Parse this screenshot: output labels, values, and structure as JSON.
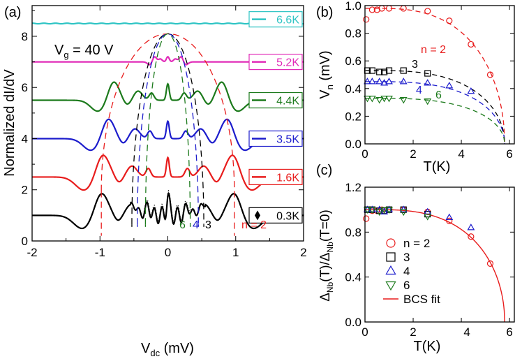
{
  "chart_data": [
    {
      "panel": "(a)",
      "type": "line",
      "xlabel_main": "V",
      "xlabel_sub": "dc",
      "xlabel_unit": " (mV)",
      "ylabel": "Normalized dI/dV",
      "annotation_main": "V",
      "annotation_sub": "g",
      "annotation_value": " = 40 V",
      "xlim": [
        -2,
        2
      ],
      "ylim": [
        0,
        9.2
      ],
      "xticks": [
        "-2",
        "-1",
        "0",
        "1",
        "2"
      ],
      "yticks": [
        "0",
        "2",
        "4",
        "6",
        "8"
      ],
      "series": [
        {
          "name": "6.6K",
          "color": "#2ec4c4",
          "baseline": 8.5,
          "gap": 0.0,
          "amp": 0.0
        },
        {
          "name": "5.2K",
          "color": "#e12bb8",
          "baseline": 7.0,
          "gap": 0.2,
          "amp": 0.25
        },
        {
          "name": "4.4K",
          "color": "#1c7a1c",
          "baseline": 5.5,
          "gap": 0.8,
          "amp": 0.8
        },
        {
          "name": "3.5K",
          "color": "#1c1ccc",
          "baseline": 4.0,
          "gap": 0.88,
          "amp": 0.85
        },
        {
          "name": "1.6K",
          "color": "#e81c1c",
          "baseline": 2.5,
          "gap": 0.96,
          "amp": 0.95
        },
        {
          "name": "0.3K",
          "color": "#000000",
          "baseline": 1.0,
          "gap": 0.98,
          "amp": 0.95
        }
      ],
      "guide_labels": {
        "n2": "n = 2",
        "n3": "3",
        "n4": "4",
        "n6": "6"
      },
      "guides": [
        {
          "n": "2",
          "color": "#e81c1c",
          "x_base": 0.98,
          "y_base": 1.95
        },
        {
          "n": "3",
          "color": "#000000",
          "x_base": 0.53,
          "y_base": 0.65
        },
        {
          "n": "4",
          "color": "#1c1ccc",
          "x_base": 0.45,
          "y_base": 0.65
        },
        {
          "n": "6",
          "color": "#1c7a1c",
          "x_base": 0.33,
          "y_base": 0.65
        }
      ],
      "guide_top_y": 8.1
    },
    {
      "panel": "(b)",
      "type": "scatter",
      "xlabel": "T(K)",
      "ylabel_main": "V",
      "ylabel_sub": "n",
      "ylabel_unit": " (mV)",
      "xlim": [
        0,
        6.2
      ],
      "ylim": [
        0,
        1.0
      ],
      "xticks": [
        "0",
        "2",
        "4",
        "6"
      ],
      "yticks": [
        "0.0",
        "0.2",
        "0.4",
        "0.6",
        "0.8",
        "1.0"
      ],
      "tc": 5.8,
      "series": [
        {
          "name": "n = 2",
          "marker": "circle",
          "color": "#e81c1c",
          "delta0": 0.98,
          "T": [
            0.05,
            0.3,
            0.5,
            0.7,
            1.0,
            1.6,
            2.6,
            3.5,
            4.4,
            5.2
          ],
          "V": [
            0.9,
            0.97,
            0.97,
            0.98,
            0.98,
            0.98,
            0.96,
            0.89,
            0.72,
            0.5
          ]
        },
        {
          "name": "3",
          "marker": "square",
          "color": "#000000",
          "delta0": 0.53,
          "T": [
            0.1,
            0.3,
            0.6,
            0.8,
            1.0,
            1.6,
            2.6
          ],
          "V": [
            0.53,
            0.53,
            0.52,
            0.52,
            0.53,
            0.53,
            0.51
          ]
        },
        {
          "name": "4",
          "marker": "triangle-up",
          "color": "#1c1ccc",
          "delta0": 0.45,
          "T": [
            0.1,
            0.3,
            0.6,
            0.8,
            1.0,
            1.6,
            2.6,
            3.5,
            4.4
          ],
          "V": [
            0.45,
            0.45,
            0.45,
            0.44,
            0.45,
            0.45,
            0.44,
            0.42,
            0.38
          ]
        },
        {
          "name": "6",
          "marker": "triangle-down",
          "color": "#1c7a1c",
          "delta0": 0.33,
          "T": [
            0.1,
            0.3,
            0.6,
            0.8,
            1.0,
            1.6,
            2.6
          ],
          "V": [
            0.33,
            0.33,
            0.32,
            0.33,
            0.33,
            0.32,
            0.31
          ]
        }
      ]
    },
    {
      "panel": "(c)",
      "type": "scatter",
      "xlabel": "T(K)",
      "ylabel": "ΔNb(T)/ΔNb(T=0)",
      "ylabel_parts": [
        "Δ",
        "Nb",
        "(T)/Δ",
        "Nb",
        "(T=0)"
      ],
      "xlim": [
        0,
        6.2
      ],
      "ylim": [
        0,
        1.2
      ],
      "xticks": [
        "0",
        "2",
        "4",
        "6"
      ],
      "yticks": [
        "0.0",
        "0.4",
        "0.8",
        "1.2"
      ],
      "tc": 5.8,
      "fit_label": "BCS fit",
      "fit_color": "#e81c1c",
      "series": [
        {
          "name": "n = 2",
          "marker": "circle",
          "color": "#e81c1c",
          "T": [
            0.05,
            0.3,
            0.5,
            0.7,
            1.0,
            1.6,
            2.6,
            3.5,
            4.4,
            5.2
          ],
          "R": [
            0.92,
            0.99,
            0.99,
            1.0,
            1.0,
            1.0,
            0.98,
            0.9,
            0.76,
            0.52
          ]
        },
        {
          "name": "3",
          "marker": "square",
          "color": "#000000",
          "T": [
            0.1,
            0.3,
            0.6,
            0.8,
            1.0,
            1.6,
            2.6
          ],
          "R": [
            1.0,
            1.0,
            0.99,
            0.99,
            1.0,
            1.0,
            0.96
          ]
        },
        {
          "name": "4",
          "marker": "triangle-up",
          "color": "#1c1ccc",
          "T": [
            0.1,
            0.3,
            0.6,
            0.8,
            1.0,
            1.6,
            2.6,
            3.5,
            4.4
          ],
          "R": [
            1.0,
            1.0,
            1.0,
            0.98,
            1.0,
            1.0,
            0.98,
            0.93,
            0.84
          ]
        },
        {
          "name": "6",
          "marker": "triangle-down",
          "color": "#1c7a1c",
          "T": [
            0.1,
            0.3,
            0.6,
            0.8,
            1.0,
            1.6,
            2.6
          ],
          "R": [
            1.0,
            1.0,
            0.98,
            1.0,
            1.0,
            0.98,
            0.94
          ]
        }
      ]
    }
  ]
}
